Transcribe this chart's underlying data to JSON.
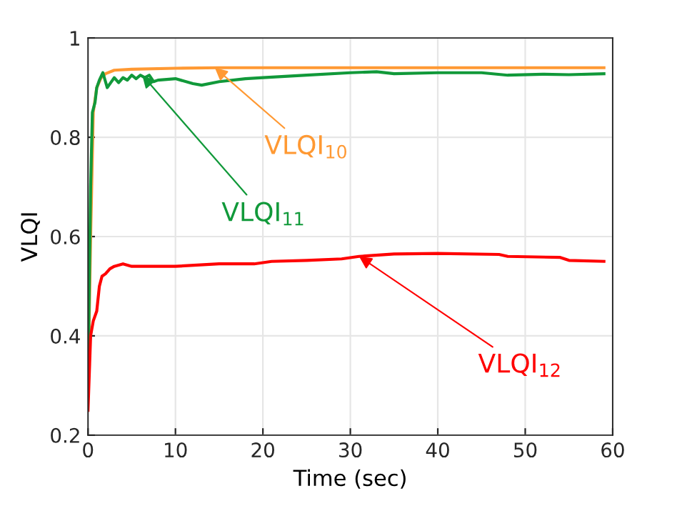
{
  "chart_data": {
    "type": "line",
    "xlabel": "Time (sec)",
    "ylabel": "VLQI",
    "xlim": [
      0,
      60
    ],
    "ylim": [
      0.2,
      1
    ],
    "xticks": [
      0,
      10,
      20,
      30,
      40,
      50,
      60
    ],
    "yticks": [
      0.2,
      0.4,
      0.6,
      0.8,
      1
    ],
    "grid": true,
    "line_style": "solid",
    "series": [
      {
        "color": "#ff9933",
        "x": [
          0,
          0.3,
          0.6,
          1,
          1.5,
          2,
          3,
          5,
          10,
          15,
          20,
          30,
          40,
          50,
          59
        ],
        "values": [
          0.3,
          0.6,
          0.85,
          0.9,
          0.92,
          0.928,
          0.935,
          0.937,
          0.939,
          0.94,
          0.94,
          0.94,
          0.94,
          0.94,
          0.94
        ]
      },
      {
        "color": "#11993a",
        "x": [
          0,
          0.3,
          0.5,
          0.8,
          1,
          1.3,
          1.7,
          2.2,
          2.6,
          3,
          3.5,
          4,
          4.5,
          5,
          5.5,
          6,
          6.5,
          7,
          7.5,
          8,
          10,
          12,
          13,
          15,
          18,
          20,
          25,
          30,
          33,
          35,
          40,
          45,
          48,
          52,
          55,
          59
        ],
        "values": [
          0.3,
          0.7,
          0.85,
          0.87,
          0.9,
          0.915,
          0.93,
          0.9,
          0.91,
          0.92,
          0.91,
          0.92,
          0.915,
          0.925,
          0.918,
          0.925,
          0.92,
          0.925,
          0.912,
          0.915,
          0.918,
          0.908,
          0.905,
          0.912,
          0.918,
          0.92,
          0.925,
          0.93,
          0.932,
          0.928,
          0.93,
          0.93,
          0.925,
          0.927,
          0.926,
          0.928
        ]
      },
      {
        "color": "#ff0000",
        "x": [
          0,
          0.3,
          0.6,
          1,
          1.3,
          1.6,
          2,
          2.5,
          3,
          4,
          5,
          7,
          10,
          15,
          19,
          21,
          25,
          29,
          31,
          35,
          40,
          47,
          48,
          54,
          55,
          59
        ],
        "values": [
          0.25,
          0.4,
          0.43,
          0.45,
          0.5,
          0.52,
          0.525,
          0.535,
          0.54,
          0.545,
          0.54,
          0.54,
          0.54,
          0.545,
          0.545,
          0.55,
          0.552,
          0.555,
          0.56,
          0.565,
          0.566,
          0.564,
          0.56,
          0.558,
          0.552,
          0.55
        ]
      }
    ],
    "annotations": [
      {
        "text": "VLQI$_{10}$",
        "x": 14.5,
        "y": 0.94
      },
      {
        "text": "VLQI$_{11}$",
        "x": 6.2,
        "y": 0.925
      },
      {
        "text": "VLQI$_{12}$",
        "x": 31,
        "y": 0.56
      }
    ]
  }
}
